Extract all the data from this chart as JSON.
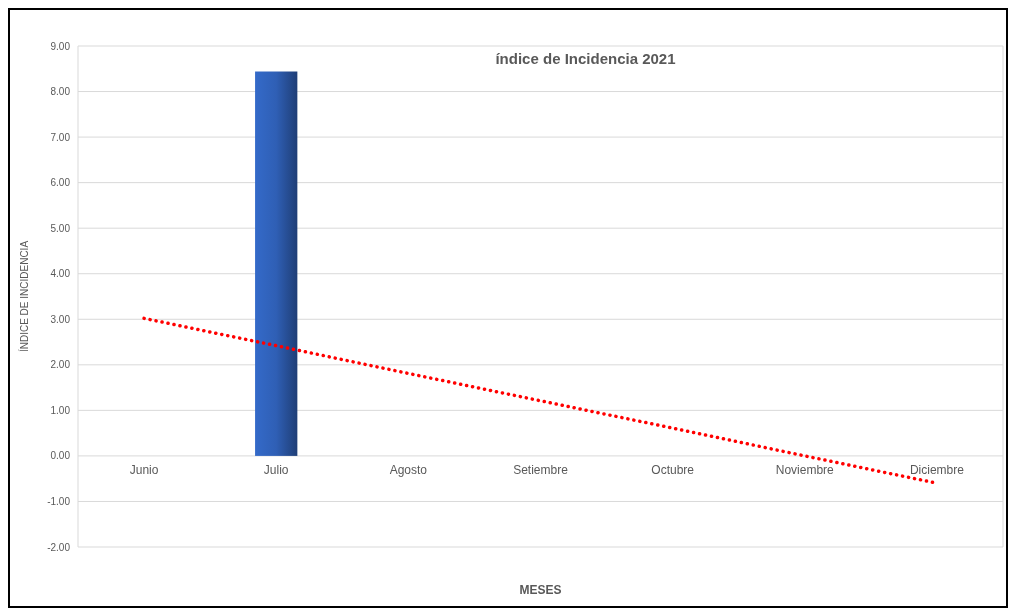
{
  "chart_data": {
    "type": "bar",
    "title": "índice de Incidencia 2021",
    "xlabel": "MESES",
    "ylabel": "ÍNDICE DE INCIDENCIA",
    "categories": [
      "Junio",
      "Julio",
      "Agosto",
      "Setiembre",
      "Octubre",
      "Noviembre",
      "Diciembre"
    ],
    "series": [
      {
        "color": "#2f5fb5",
        "values": [
          null,
          8.44,
          null,
          null,
          null,
          null,
          null
        ]
      },
      {
        "type": "line",
        "color": "#ff0000",
        "line_style": "dotted",
        "marker": "none",
        "values": [
          3.02,
          2.42,
          1.81,
          1.21,
          0.61,
          0.0,
          -0.6
        ]
      }
    ],
    "ylim": [
      -2,
      9
    ],
    "yticks": [
      {
        "value": -2,
        "label": "-2.00"
      },
      {
        "value": -1,
        "label": "-1.00"
      },
      {
        "value": 0,
        "label": "0.00"
      },
      {
        "value": 1,
        "label": "1.00"
      },
      {
        "value": 2,
        "label": "2.00"
      },
      {
        "value": 3,
        "label": "3.00"
      },
      {
        "value": 4,
        "label": "4.00"
      },
      {
        "value": 5,
        "label": "5.00"
      },
      {
        "value": 6,
        "label": "6.00"
      },
      {
        "value": 7,
        "label": "7.00"
      },
      {
        "value": 8,
        "label": "8.00"
      },
      {
        "value": 9,
        "label": "9.00"
      }
    ],
    "grid": "y"
  }
}
